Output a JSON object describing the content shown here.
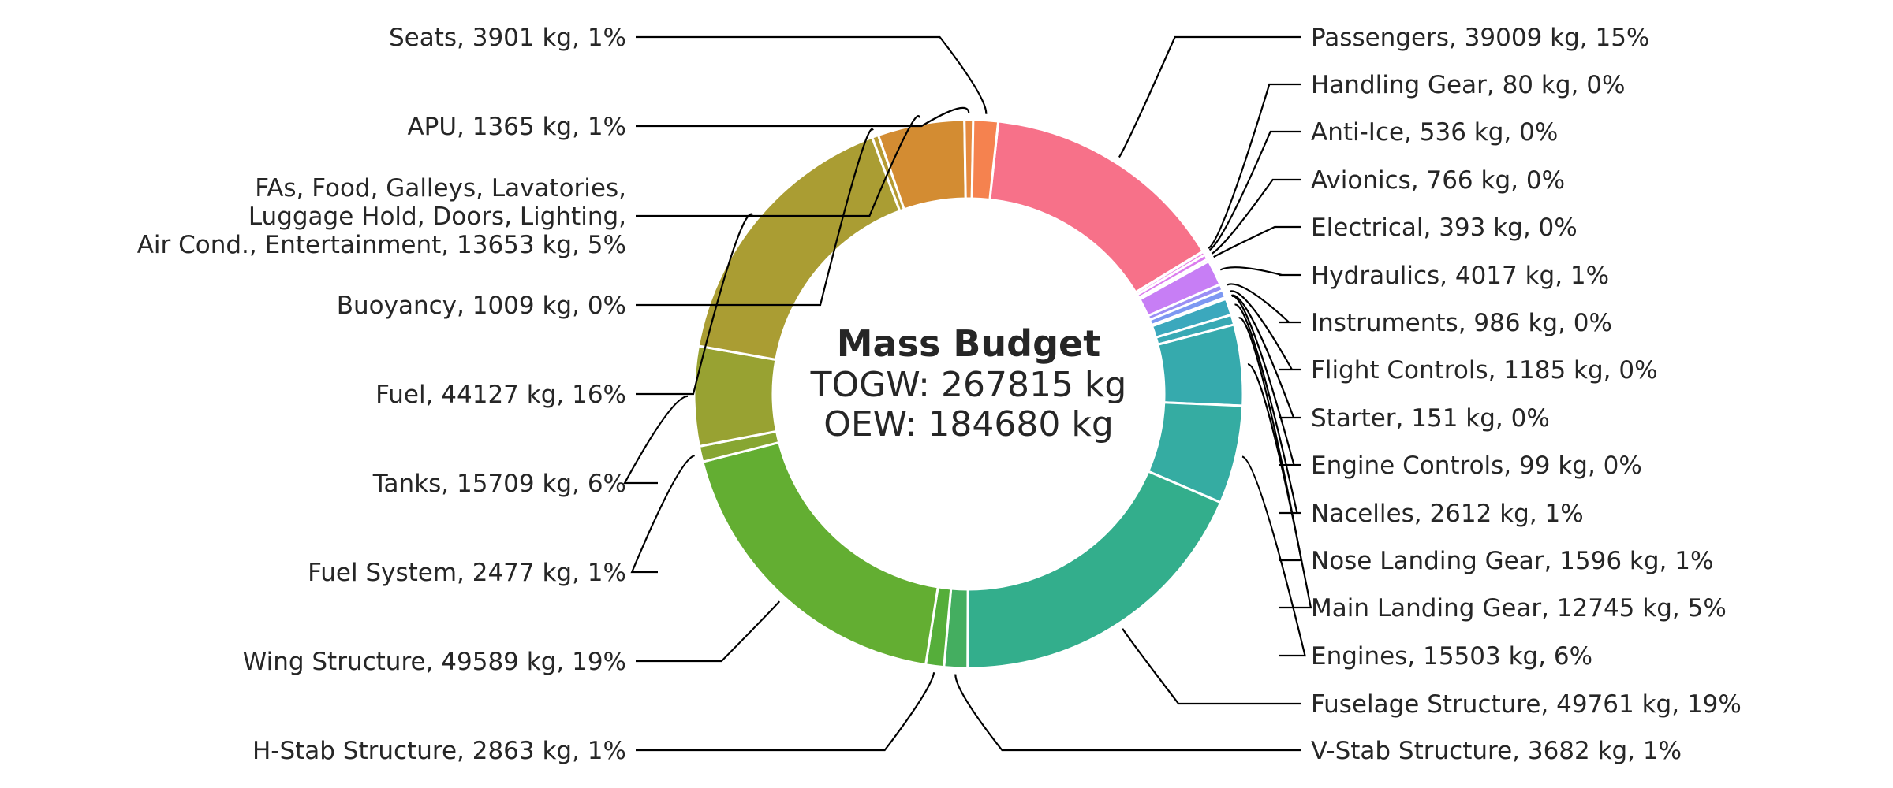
{
  "chart_data": {
    "type": "pie",
    "donut": true,
    "center_text": {
      "title": "Mass Budget",
      "line1": "TOGW: 267815 kg",
      "line2": "OEW: 184680 kg"
    },
    "slices": [
      {
        "label": "Passengers, 39009 kg, 15%",
        "value": 39009,
        "color": "#f77189",
        "side": "right"
      },
      {
        "label": "Handling Gear, 80 kg, 0%",
        "value": 80,
        "color": "#f375c6",
        "side": "right"
      },
      {
        "label": "Anti-Ice, 536 kg, 0%",
        "value": 536,
        "color": "#e67ae3",
        "side": "right"
      },
      {
        "label": "Avionics, 766 kg, 0%",
        "value": 766,
        "color": "#dc7dee",
        "side": "right"
      },
      {
        "label": "Electrical, 393 kg, 0%",
        "value": 393,
        "color": "#d37ff3",
        "side": "right"
      },
      {
        "label": "Hydraulics, 4017 kg, 1%",
        "value": 4017,
        "color": "#c77ef5",
        "side": "right"
      },
      {
        "label": "Instruments, 986 kg, 0%",
        "value": 986,
        "color": "#9b8ef5",
        "side": "right"
      },
      {
        "label": "Flight Controls, 1185 kg, 0%",
        "value": 1185,
        "color": "#7d98f2",
        "side": "right"
      },
      {
        "label": "Starter, 151 kg, 0%",
        "value": 151,
        "color": "#5ea2db",
        "side": "right"
      },
      {
        "label": "Engine Controls, 99 kg, 0%",
        "value": 99,
        "color": "#45a8c8",
        "side": "right"
      },
      {
        "label": "Nacelles, 2612 kg, 1%",
        "value": 2612,
        "color": "#3ba8bd",
        "side": "right"
      },
      {
        "label": "Nose Landing Gear, 1596 kg, 1%",
        "value": 1596,
        "color": "#38a9b4",
        "side": "right"
      },
      {
        "label": "Main Landing Gear, 12745 kg, 5%",
        "value": 12745,
        "color": "#36aaad",
        "side": "right"
      },
      {
        "label": "Engines, 15503 kg, 6%",
        "value": 15503,
        "color": "#35aca2",
        "side": "right"
      },
      {
        "label": "Fuselage Structure, 49761 kg, 19%",
        "value": 49761,
        "color": "#33ae8c",
        "side": "right"
      },
      {
        "label": "V-Stab Structure, 3682 kg, 1%",
        "value": 3682,
        "color": "#44ae60",
        "side": "right"
      },
      {
        "label": "H-Stab Structure, 2863 kg, 1%",
        "value": 2863,
        "color": "#55ae3a",
        "side": "left"
      },
      {
        "label": "Wing Structure, 49589 kg, 19%",
        "value": 49589,
        "color": "#63ae32",
        "side": "left"
      },
      {
        "label": "Fuel System, 2477 kg, 1%",
        "value": 2477,
        "color": "#87a632",
        "side": "left"
      },
      {
        "label": "Tanks, 15709 kg, 6%",
        "value": 15709,
        "color": "#98a232",
        "side": "left"
      },
      {
        "label": "Fuel, 44127 kg, 16%",
        "value": 44127,
        "color": "#aa9d33",
        "side": "left"
      },
      {
        "label": "Buoyancy, 1009 kg, 0%",
        "value": 1009,
        "color": "#b59a33",
        "side": "left"
      },
      {
        "label": "FAs, Food, Galleys, Lavatories,\nLuggage Hold, Doors, Lighting,\nAir Cond., Entertainment, 13653 kg, 5%",
        "value": 13653,
        "color": "#d38c32",
        "side": "left"
      },
      {
        "label": "APU, 1365 kg, 1%",
        "value": 1365,
        "color": "#e58a40",
        "side": "left"
      },
      {
        "label": "Seats, 3901 kg, 1%",
        "value": 3901,
        "color": "#f5824f",
        "side": "left"
      }
    ]
  }
}
